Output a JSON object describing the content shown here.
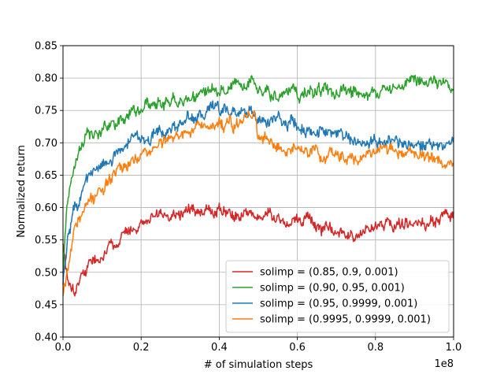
{
  "chart_data": {
    "type": "line",
    "title": "",
    "xlabel": "# of simulation steps",
    "ylabel": "Normalized return",
    "x_offset_label": "1e8",
    "xlim": [
      0,
      1.0
    ],
    "ylim": [
      0.4,
      0.85
    ],
    "x_ticks": [
      0.0,
      0.2,
      0.4,
      0.6,
      0.8,
      1.0
    ],
    "x_tick_labels": [
      "0.0",
      "0.2",
      "0.4",
      "0.6",
      "0.8",
      "1.0"
    ],
    "y_ticks": [
      0.4,
      0.45,
      0.5,
      0.55,
      0.6,
      0.65,
      0.7,
      0.75,
      0.8,
      0.85
    ],
    "y_tick_labels": [
      "0.40",
      "0.45",
      "0.50",
      "0.55",
      "0.60",
      "0.65",
      "0.70",
      "0.75",
      "0.80",
      "0.85"
    ],
    "grid": true,
    "legend_position": "bottom-right",
    "series": [
      {
        "name": "solimp = (0.85, 0.9, 0.001)",
        "color": "#d62728",
        "x": [
          0.0,
          0.01,
          0.02,
          0.03,
          0.05,
          0.07,
          0.1,
          0.12,
          0.15,
          0.18,
          0.2,
          0.23,
          0.25,
          0.3,
          0.35,
          0.4,
          0.45,
          0.5,
          0.55,
          0.6,
          0.65,
          0.7,
          0.72,
          0.75,
          0.8,
          0.85,
          0.9,
          0.95,
          1.0
        ],
        "y": [
          0.545,
          0.5,
          0.49,
          0.475,
          0.5,
          0.515,
          0.525,
          0.54,
          0.555,
          0.565,
          0.575,
          0.585,
          0.59,
          0.595,
          0.597,
          0.6,
          0.592,
          0.588,
          0.583,
          0.578,
          0.57,
          0.562,
          0.555,
          0.563,
          0.568,
          0.573,
          0.577,
          0.58,
          0.583
        ]
      },
      {
        "name": "solimp = (0.90, 0.95, 0.001)",
        "color": "#2ca02c",
        "x": [
          0.0,
          0.005,
          0.01,
          0.02,
          0.03,
          0.05,
          0.07,
          0.1,
          0.15,
          0.2,
          0.25,
          0.3,
          0.35,
          0.4,
          0.45,
          0.49,
          0.5,
          0.55,
          0.6,
          0.65,
          0.7,
          0.75,
          0.8,
          0.85,
          0.9,
          0.95,
          1.0
        ],
        "y": [
          0.5,
          0.56,
          0.6,
          0.64,
          0.67,
          0.695,
          0.71,
          0.72,
          0.74,
          0.75,
          0.76,
          0.768,
          0.775,
          0.778,
          0.785,
          0.786,
          0.77,
          0.775,
          0.775,
          0.78,
          0.775,
          0.775,
          0.785,
          0.79,
          0.795,
          0.79,
          0.79
        ]
      },
      {
        "name": "solimp = (0.95, 0.9999, 0.001)",
        "color": "#1f77b4",
        "x": [
          0.0,
          0.005,
          0.01,
          0.02,
          0.03,
          0.05,
          0.07,
          0.1,
          0.15,
          0.2,
          0.25,
          0.3,
          0.35,
          0.4,
          0.45,
          0.49,
          0.5,
          0.55,
          0.6,
          0.65,
          0.7,
          0.75,
          0.8,
          0.85,
          0.9,
          0.95,
          1.0
        ],
        "y": [
          0.48,
          0.5,
          0.53,
          0.57,
          0.6,
          0.63,
          0.65,
          0.67,
          0.69,
          0.71,
          0.72,
          0.73,
          0.74,
          0.748,
          0.755,
          0.758,
          0.735,
          0.735,
          0.728,
          0.72,
          0.713,
          0.705,
          0.705,
          0.7,
          0.7,
          0.702,
          0.703
        ]
      },
      {
        "name": "solimp = (0.9995, 0.9999, 0.001)",
        "color": "#ff7f0e",
        "x": [
          0.0,
          0.005,
          0.01,
          0.02,
          0.03,
          0.05,
          0.07,
          0.1,
          0.15,
          0.2,
          0.25,
          0.3,
          0.35,
          0.4,
          0.45,
          0.49,
          0.5,
          0.55,
          0.6,
          0.65,
          0.7,
          0.75,
          0.8,
          0.85,
          0.9,
          0.95,
          1.0
        ],
        "y": [
          0.465,
          0.48,
          0.5,
          0.53,
          0.56,
          0.59,
          0.61,
          0.635,
          0.665,
          0.685,
          0.7,
          0.712,
          0.722,
          0.73,
          0.735,
          0.737,
          0.71,
          0.698,
          0.69,
          0.685,
          0.68,
          0.678,
          0.68,
          0.685,
          0.685,
          0.675,
          0.67
        ]
      }
    ]
  }
}
